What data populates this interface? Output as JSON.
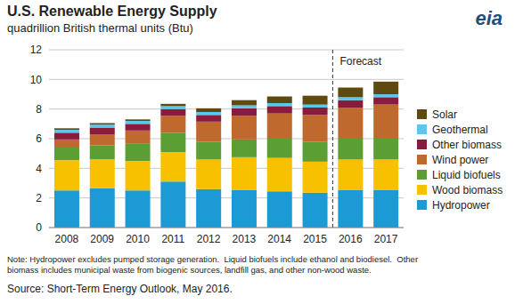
{
  "chart_data": {
    "type": "bar",
    "title": "U.S. Renewable Energy Supply",
    "subtitle": "quadrillion British thermal units (Btu)",
    "logo": "eia",
    "notes": [
      "Note: Hydropower excludes pumped storage generation.  Liquid biofuels include ethanol and biodiesel.  Other",
      "biomass includes municipal waste from biogenic sources, landfill gas, and other non-wood waste."
    ],
    "source": "Source: Short-Term Energy Outlook, May 2016.",
    "annotations": [
      {
        "text": "Forecast",
        "x": "2016"
      }
    ],
    "categories": [
      "2008",
      "2009",
      "2010",
      "2011",
      "2012",
      "2013",
      "2014",
      "2015",
      "2016",
      "2017"
    ],
    "series": [
      {
        "name": "Hydropower",
        "color": "#1b9ad6",
        "values": [
          2.5,
          2.65,
          2.5,
          3.1,
          2.6,
          2.55,
          2.45,
          2.35,
          2.55,
          2.55
        ]
      },
      {
        "name": "Wood biomass",
        "color": "#f7c100",
        "values": [
          2.05,
          1.95,
          2.0,
          2.0,
          2.0,
          2.2,
          2.25,
          2.1,
          2.05,
          2.05
        ]
      },
      {
        "name": "Liquid biofuels",
        "color": "#5b9e34",
        "values": [
          0.85,
          0.95,
          1.15,
          1.3,
          1.2,
          1.2,
          1.3,
          1.35,
          1.4,
          1.4
        ]
      },
      {
        "name": "Wind power",
        "color": "#c0692f",
        "values": [
          0.55,
          0.75,
          0.9,
          1.15,
          1.35,
          1.6,
          1.7,
          1.8,
          2.1,
          2.3
        ]
      },
      {
        "name": "Other biomass",
        "color": "#8b1b3c",
        "values": [
          0.45,
          0.45,
          0.45,
          0.45,
          0.45,
          0.5,
          0.5,
          0.5,
          0.5,
          0.5
        ]
      },
      {
        "name": "Geothermal",
        "color": "#5cc7ea",
        "values": [
          0.2,
          0.2,
          0.2,
          0.2,
          0.2,
          0.2,
          0.2,
          0.2,
          0.2,
          0.2
        ]
      },
      {
        "name": "Solar",
        "color": "#5e4a10",
        "values": [
          0.1,
          0.1,
          0.1,
          0.15,
          0.25,
          0.35,
          0.45,
          0.6,
          0.65,
          0.85
        ]
      }
    ],
    "ylim": [
      0,
      12
    ],
    "yticks": [
      0,
      2,
      4,
      6,
      8,
      10,
      12
    ],
    "grid": true,
    "stacked": true,
    "legend": "right"
  }
}
